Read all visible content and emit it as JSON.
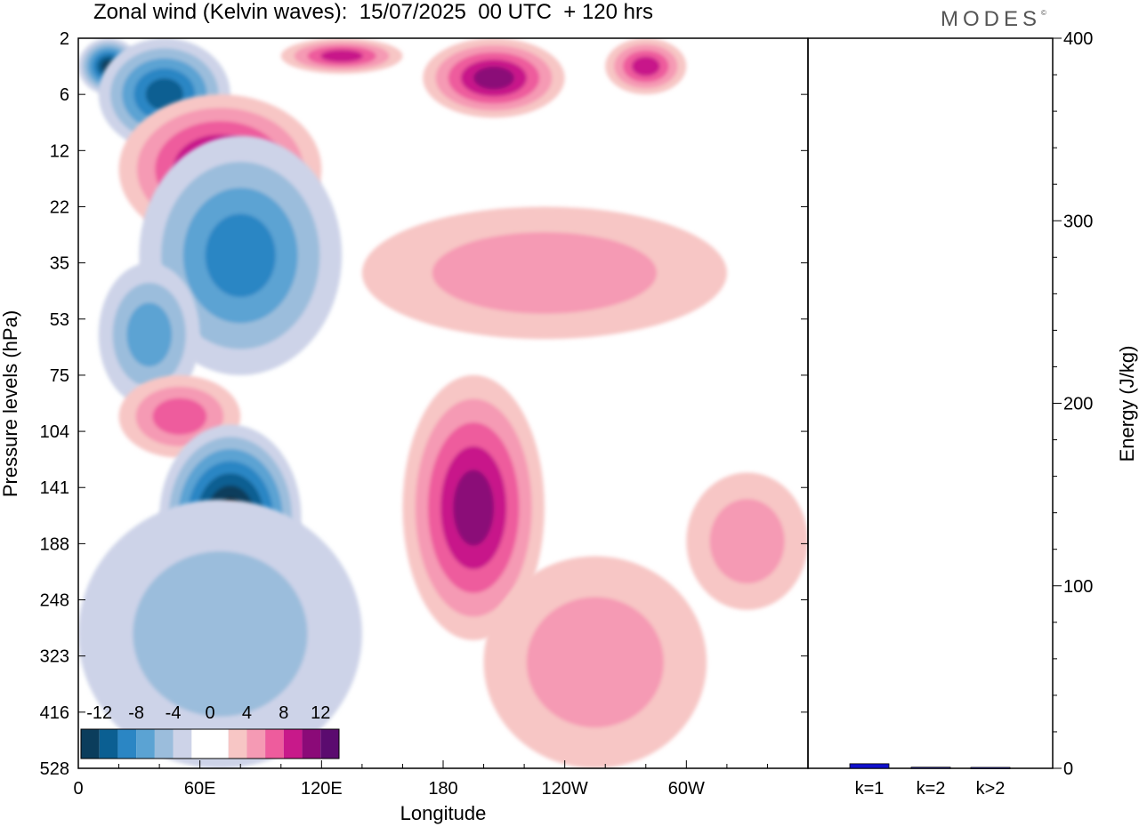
{
  "title": "Zonal wind (Kelvin waves):  15/07/2025  00 UTC  + 120 hrs",
  "brand": "MODES",
  "brand_mark": "©",
  "chart_data": [
    {
      "type": "heatmap",
      "xlabel": "Longitude",
      "ylabel": "Pressure levels (hPa)",
      "x_ticks": [
        "0",
        "60E",
        "120E",
        "180",
        "120W",
        "60W"
      ],
      "y_ticks": [
        "2",
        "6",
        "12",
        "22",
        "35",
        "53",
        "75",
        "104",
        "141",
        "188",
        "248",
        "323",
        "416",
        "528"
      ],
      "colorbar": {
        "labels": [
          "-12",
          "-8",
          "-4",
          "0",
          "4",
          "8",
          "12"
        ],
        "colors": [
          "#0b3d5c",
          "#0b5f92",
          "#2b86c4",
          "#5ba3d3",
          "#9bbddc",
          "#cdd3e8",
          "#ffffff",
          "#ffffff",
          "#f7c6c5",
          "#f59ab4",
          "#ee5c9d",
          "#c8198a",
          "#8b0a78",
          "#5b0b6f"
        ]
      },
      "features": [
        {
          "sign": "negative",
          "level": 6,
          "lon": [
            0,
            30
          ],
          "p": [
            2,
            6
          ]
        },
        {
          "sign": "negative",
          "level": 5,
          "lon": [
            10,
            75
          ],
          "p": [
            2,
            12
          ]
        },
        {
          "sign": "positive",
          "level": 4,
          "lon": [
            100,
            160
          ],
          "p": [
            2,
            4
          ]
        },
        {
          "sign": "positive",
          "level": 5,
          "lon": [
            170,
            240
          ],
          "p": [
            2,
            8
          ]
        },
        {
          "sign": "positive",
          "level": 4,
          "lon": [
            260,
            300
          ],
          "p": [
            2,
            6
          ]
        },
        {
          "sign": "positive",
          "level": 5,
          "lon": [
            20,
            120
          ],
          "p": [
            6,
            30
          ]
        },
        {
          "sign": "negative",
          "level": 4,
          "lon": [
            30,
            130
          ],
          "p": [
            10,
            75
          ]
        },
        {
          "sign": "negative",
          "level": 3,
          "lon": [
            10,
            60
          ],
          "p": [
            35,
            90
          ]
        },
        {
          "sign": "positive",
          "level": 3,
          "lon": [
            20,
            80
          ],
          "p": [
            75,
            120
          ]
        },
        {
          "sign": "negative",
          "level": 7,
          "lon": [
            40,
            110
          ],
          "p": [
            100,
            260
          ]
        },
        {
          "sign": "positive",
          "level": 5,
          "lon": [
            160,
            230
          ],
          "p": [
            75,
            300
          ]
        },
        {
          "sign": "positive",
          "level": 2,
          "lon": [
            200,
            310
          ],
          "p": [
            200,
            528
          ]
        },
        {
          "sign": "positive",
          "level": 2,
          "lon": [
            140,
            320
          ],
          "p": [
            22,
            60
          ]
        },
        {
          "sign": "negative",
          "level": 2,
          "lon": [
            0,
            140
          ],
          "p": [
            150,
            528
          ]
        },
        {
          "sign": "positive",
          "level": 2,
          "lon": [
            300,
            360
          ],
          "p": [
            130,
            260
          ]
        }
      ]
    },
    {
      "type": "bar",
      "categories": [
        "k=1",
        "k=2",
        "k>2"
      ],
      "values": [
        2.5,
        0.6,
        0.5
      ],
      "ylabel": "Energy (J/kg)",
      "ylim": [
        0,
        400
      ],
      "y_ticks": [
        "0",
        "100",
        "200",
        "300",
        "400"
      ],
      "colors": [
        "#1010cc",
        "#202080",
        "#202080"
      ]
    }
  ]
}
